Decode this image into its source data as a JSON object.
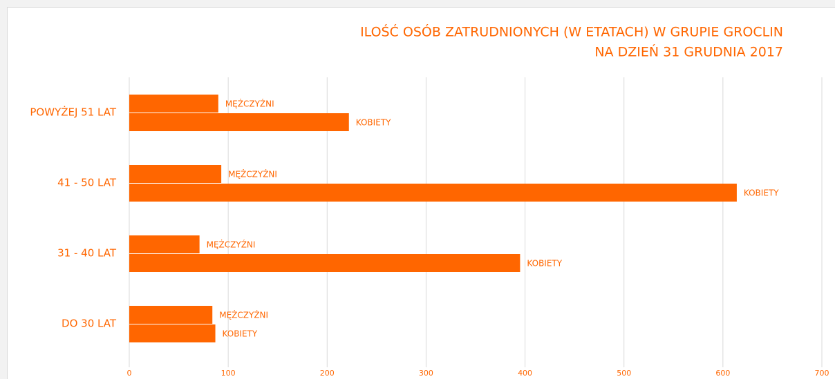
{
  "chart_data": {
    "type": "hbar",
    "title": [
      "ILOŚĆ OSÓB ZATRUDNIONYCH (W ETATACH) W GRUPIE GROCLIN",
      "NA DZIEŃ 31 GRUDNIA 2017"
    ],
    "categories": [
      "POWYŻEJ 51 LAT",
      "41 - 50 LAT",
      "31 - 40 LAT",
      "DO 30 LAT"
    ],
    "series": [
      {
        "name": "MĘŻCZYŹNI",
        "color": "#ff6600",
        "values": [
          90,
          93,
          71,
          84
        ]
      },
      {
        "name": "KOBIETY",
        "color": "#ff6600",
        "values": [
          222,
          614,
          395,
          87
        ]
      }
    ],
    "xlim": [
      0,
      700
    ],
    "xticks": [
      0,
      100,
      200,
      300,
      400,
      500,
      600,
      700
    ],
    "grid": true
  }
}
